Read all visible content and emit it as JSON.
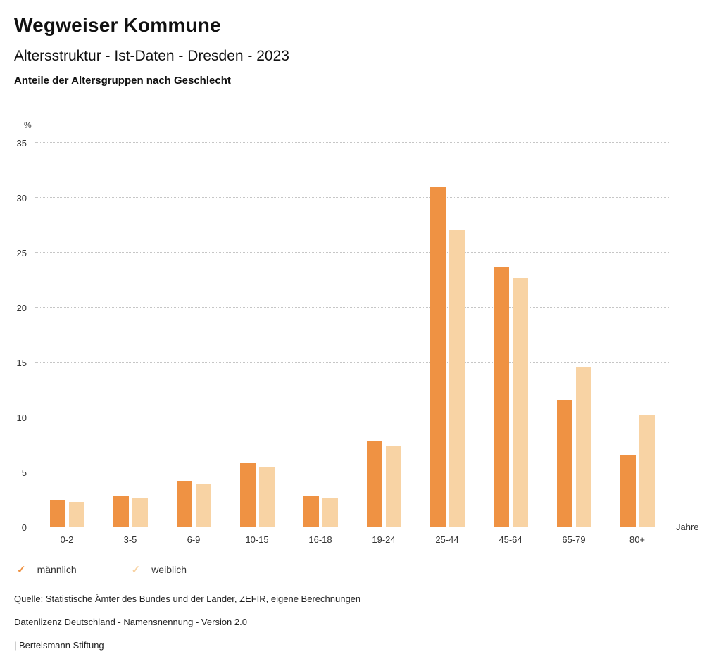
{
  "header": {
    "title": "Wegweiser Kommune",
    "subtitle": "Altersstruktur - Ist-Daten - Dresden - 2023",
    "subsubtitle": "Anteile der Altersgruppen nach Geschlecht"
  },
  "chart_data": {
    "type": "bar",
    "title": "Anteile der Altersgruppen nach Geschlecht",
    "categories": [
      "0-2",
      "3-5",
      "6-9",
      "10-15",
      "16-18",
      "19-24",
      "25-44",
      "45-64",
      "65-79",
      "80+"
    ],
    "series": [
      {
        "name": "männlich",
        "color": "#EF9243",
        "values": [
          2.5,
          2.8,
          4.2,
          5.9,
          2.8,
          7.9,
          31.0,
          23.7,
          11.6,
          6.6
        ]
      },
      {
        "name": "weiblich",
        "color": "#F8D3A4",
        "values": [
          2.3,
          2.7,
          3.9,
          5.5,
          2.6,
          7.4,
          27.1,
          22.7,
          14.6,
          10.2
        ]
      }
    ],
    "xlabel": "Jahre",
    "ylabel": "%",
    "ylim": [
      0,
      35
    ],
    "yticks": [
      0,
      5,
      10,
      15,
      20,
      25,
      30,
      35
    ],
    "grid": true,
    "legend_position": "bottom"
  },
  "legend": {
    "items": [
      {
        "label": "männlich",
        "color": "#EF9243",
        "icon": "check-icon"
      },
      {
        "label": "weiblich",
        "color": "#F8D3A4",
        "icon": "check-icon"
      }
    ]
  },
  "footer": {
    "source": "Quelle: Statistische Ämter des Bundes und der Länder, ZEFIR, eigene Berechnungen",
    "license": "Datenlizenz Deutschland - Namensnennung - Version 2.0",
    "attribution": "| Bertelsmann Stiftung"
  }
}
